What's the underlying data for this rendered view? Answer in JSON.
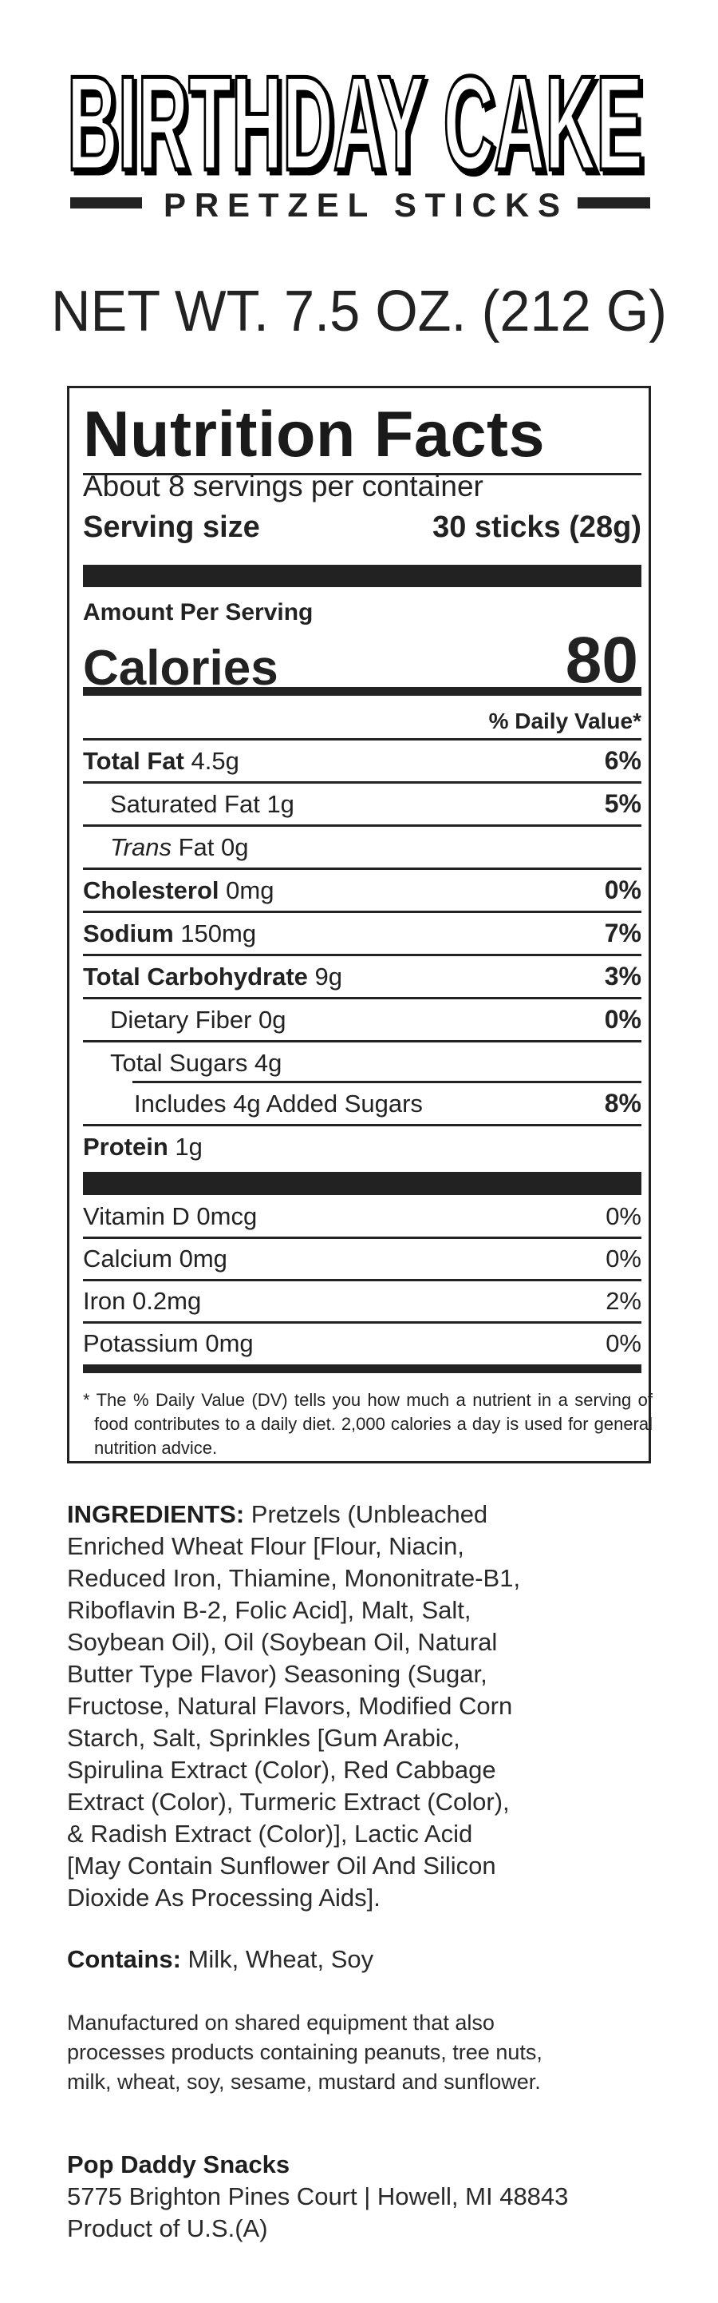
{
  "header": {
    "title": "BIRTHDAY CAKE",
    "subtitle": "PRETZEL STICKS",
    "net_weight": "NET WT. 7.5 OZ. (212 G)"
  },
  "nutrition": {
    "title": "Nutrition Facts",
    "servings_per_container": "About 8 servings per container",
    "serving_size_label": "Serving size",
    "serving_size_value": "30 sticks (28g)",
    "amount_per_serving": "Amount Per Serving",
    "calories_label": "Calories",
    "calories_value": "80",
    "daily_value_header": "% Daily Value*",
    "rows": [
      {
        "label": "Total Fat",
        "amount": "4.5g",
        "dv": "6%"
      },
      {
        "label": "Saturated Fat 1g",
        "amount": "",
        "dv": "5%"
      },
      {
        "label": "Trans",
        "amount": "Fat 0g",
        "dv": ""
      },
      {
        "label": "Cholesterol",
        "amount": "0mg",
        "dv": "0%"
      },
      {
        "label": "Sodium",
        "amount": "150mg",
        "dv": "7%"
      },
      {
        "label": "Total Carbohydrate",
        "amount": "9g",
        "dv": "3%"
      },
      {
        "label": "Dietary Fiber 0g",
        "amount": "",
        "dv": "0%"
      },
      {
        "label": "Total Sugars 4g",
        "amount": "",
        "dv": ""
      },
      {
        "label": "Includes 4g Added Sugars",
        "amount": "",
        "dv": "8%"
      },
      {
        "label": "Protein",
        "amount": "1g",
        "dv": ""
      }
    ],
    "vitamins": [
      {
        "label": "Vitamin D 0mcg",
        "dv": "0%"
      },
      {
        "label": "Calcium 0mg",
        "dv": "0%"
      },
      {
        "label": "Iron 0.2mg",
        "dv": "2%"
      },
      {
        "label": "Potassium 0mg",
        "dv": "0%"
      }
    ],
    "footnote": "* The % Daily Value (DV) tells you how much a nutrient in a serving of food contributes to a daily diet. 2,000 calories a day is used for general nutrition advice."
  },
  "ingredients": {
    "label": "INGREDIENTS:",
    "lines": [
      " Pretzels (Unbleached",
      "Enriched Wheat Flour [Flour, Niacin,",
      "Reduced Iron, Thiamine, Mononitrate-B1,",
      "Riboflavin B-2, Folic Acid], Malt, Salt,",
      "Soybean Oil), Oil (Soybean Oil, Natural",
      "Butter Type Flavor) Seasoning (Sugar,",
      "Fructose, Natural Flavors, Modified Corn",
      "Starch, Salt, Sprinkles [Gum Arabic,",
      "Spirulina Extract (Color), Red Cabbage",
      "Extract (Color), Turmeric Extract (Color),",
      "& Radish Extract (Color)], Lactic Acid",
      "[May Contain Sunflower Oil And Silicon",
      "Dioxide As Processing Aids]."
    ]
  },
  "allergens": {
    "label": "Contains:",
    "value": " Milk, Wheat, Soy"
  },
  "shared_equipment": [
    "Manufactured on shared equipment that also",
    "processes products containing peanuts, tree nuts,",
    "milk, wheat, soy, sesame, mustard and sunflower."
  ],
  "manufacturer": {
    "name": "Pop Daddy Snacks",
    "address": "5775 Brighton Pines Court | Howell, MI 48843",
    "origin": "Product of U.S.(A)"
  }
}
